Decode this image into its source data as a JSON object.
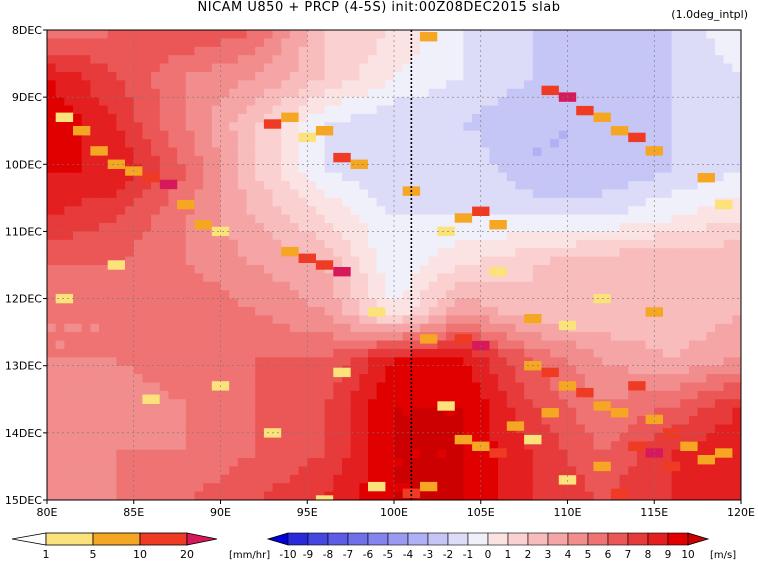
{
  "header": {
    "title": "NICAM   U850 + PRCP (4-5S) init:00Z08DEC2015 slab",
    "note": "(1.0deg_intpl)"
  },
  "chart_data": {
    "type": "heatmap",
    "x_ticks": [
      "80E",
      "85E",
      "90E",
      "95E",
      "100E",
      "105E",
      "110E",
      "115E",
      "120E"
    ],
    "y_ticks": [
      "8DEC",
      "9DEC",
      "10DEC",
      "11DEC",
      "12DEC",
      "13DEC",
      "14DEC",
      "15DEC"
    ],
    "xlim": [
      80,
      120
    ],
    "ylim_days": [
      8,
      15
    ],
    "reference_line_x": 101,
    "wind_field_u850_ms": {
      "lon": [
        80,
        84,
        88,
        92,
        96,
        100,
        104,
        108,
        112,
        116,
        120
      ],
      "days": [
        8,
        8.7,
        9.4,
        10.1,
        10.8,
        11.5,
        12.2,
        12.9,
        13.6,
        14.3,
        15
      ],
      "rows": [
        [
          5,
          6,
          7,
          6,
          2,
          1,
          -1,
          -2,
          -3,
          -2,
          0
        ],
        [
          9,
          7,
          5,
          4,
          2,
          0,
          -1,
          -2,
          -3,
          -2,
          -1
        ],
        [
          10,
          8,
          5,
          2,
          -1,
          -2,
          -2,
          -3,
          -3,
          -2,
          -1
        ],
        [
          9,
          9,
          6,
          2,
          -1,
          -2,
          -1,
          -3,
          -3,
          -2,
          -1
        ],
        [
          8,
          7,
          5,
          3,
          1,
          -1,
          -1,
          -1,
          -1,
          0,
          1
        ],
        [
          6,
          6,
          5,
          4,
          3,
          -1,
          1,
          2,
          3,
          3,
          3
        ],
        [
          5,
          5,
          6,
          5,
          4,
          0,
          4,
          2,
          2,
          2,
          3
        ],
        [
          5,
          5,
          6,
          6,
          6,
          9,
          9,
          6,
          4,
          3,
          4
        ],
        [
          4,
          4,
          5,
          6,
          7,
          10,
          10,
          7,
          5,
          6,
          8
        ],
        [
          4,
          5,
          5,
          6,
          7,
          10,
          10,
          8,
          6,
          8,
          9
        ],
        [
          5,
          5,
          6,
          7,
          8,
          10,
          10,
          8,
          7,
          8,
          9
        ]
      ]
    },
    "precip_cells_mmhr": [
      [
        81,
        9.3,
        1
      ],
      [
        82,
        9.5,
        5
      ],
      [
        83,
        9.8,
        5
      ],
      [
        84,
        10.0,
        5
      ],
      [
        85,
        10.1,
        5
      ],
      [
        86,
        10.2,
        10
      ],
      [
        87,
        10.3,
        20
      ],
      [
        88,
        10.6,
        5
      ],
      [
        89,
        10.9,
        5
      ],
      [
        90,
        11.0,
        1
      ],
      [
        93,
        9.4,
        10
      ],
      [
        94,
        9.3,
        5
      ],
      [
        95,
        9.6,
        1
      ],
      [
        96,
        9.5,
        5
      ],
      [
        97,
        9.9,
        10
      ],
      [
        98,
        10.0,
        5
      ],
      [
        94,
        11.3,
        5
      ],
      [
        95,
        11.4,
        10
      ],
      [
        96,
        11.5,
        10
      ],
      [
        97,
        11.6,
        20
      ],
      [
        101,
        10.4,
        5
      ],
      [
        102,
        8.1,
        5
      ],
      [
        104,
        10.8,
        5
      ],
      [
        105,
        10.7,
        10
      ],
      [
        106,
        10.9,
        5
      ],
      [
        109,
        8.9,
        10
      ],
      [
        110,
        9.0,
        20
      ],
      [
        111,
        9.2,
        10
      ],
      [
        112,
        9.3,
        5
      ],
      [
        113,
        9.5,
        5
      ],
      [
        114,
        9.6,
        10
      ],
      [
        115,
        9.8,
        5
      ],
      [
        118,
        10.2,
        5
      ],
      [
        119,
        10.6,
        1
      ],
      [
        103,
        11.0,
        1
      ],
      [
        106,
        11.6,
        1
      ],
      [
        112,
        12.0,
        1
      ],
      [
        115,
        12.2,
        5
      ],
      [
        104,
        12.6,
        10
      ],
      [
        105,
        12.7,
        20
      ],
      [
        102,
        12.6,
        5
      ],
      [
        108,
        12.3,
        5
      ],
      [
        110,
        12.4,
        1
      ],
      [
        108,
        13.0,
        5
      ],
      [
        109,
        13.1,
        10
      ],
      [
        110,
        13.3,
        5
      ],
      [
        111,
        13.4,
        10
      ],
      [
        112,
        13.6,
        5
      ],
      [
        113,
        13.7,
        5
      ],
      [
        114,
        13.3,
        10
      ],
      [
        115,
        13.8,
        5
      ],
      [
        116,
        14.0,
        10
      ],
      [
        117,
        14.2,
        5
      ],
      [
        114,
        14.2,
        10
      ],
      [
        115,
        14.3,
        20
      ],
      [
        116,
        14.5,
        10
      ],
      [
        118,
        14.4,
        5
      ],
      [
        119,
        14.3,
        5
      ],
      [
        112,
        14.5,
        5
      ],
      [
        110,
        14.7,
        1
      ],
      [
        113,
        14.9,
        10
      ],
      [
        109,
        13.7,
        5
      ],
      [
        107,
        13.9,
        5
      ],
      [
        108,
        14.1,
        1
      ],
      [
        103,
        13.6,
        1
      ],
      [
        104,
        14.1,
        5
      ],
      [
        105,
        14.2,
        5
      ],
      [
        106,
        14.3,
        10
      ],
      [
        102,
        14.8,
        5
      ],
      [
        101,
        14.9,
        10
      ],
      [
        99,
        14.8,
        1
      ],
      [
        96,
        15.0,
        1
      ],
      [
        84,
        11.5,
        1
      ],
      [
        81,
        12.0,
        1
      ],
      [
        86,
        13.5,
        1
      ],
      [
        90,
        13.3,
        1
      ],
      [
        93,
        14.0,
        1
      ],
      [
        97,
        13.1,
        1
      ],
      [
        99,
        12.2,
        1
      ]
    ],
    "precip_legend": {
      "values": [
        "1",
        "5",
        "10",
        "20"
      ],
      "colors": [
        "#ffffff",
        "#fbe27b",
        "#f5a623",
        "#ef3b24",
        "#d7195c"
      ],
      "unit": "[mm/hr]"
    },
    "wind_legend": {
      "values": [
        "-10",
        "-9",
        "-8",
        "-7",
        "-6",
        "-5",
        "-4",
        "-3",
        "-2",
        "-1",
        "0",
        "1",
        "2",
        "3",
        "4",
        "5",
        "6",
        "7",
        "8",
        "9",
        "10"
      ],
      "colors": [
        "#0000d8",
        "#2a2ad8",
        "#4646e0",
        "#5c5ce6",
        "#7070ea",
        "#8484ee",
        "#9a9af0",
        "#b0b0f4",
        "#c6c6f6",
        "#dcdcf8",
        "#f0f0fb",
        "#fbe3e3",
        "#fad0d0",
        "#f8bcbc",
        "#f5a5a5",
        "#f28d8d",
        "#ef7373",
        "#eb5757",
        "#e73b3b",
        "#e41f1f",
        "#e10000",
        "#cc0000"
      ],
      "unit": "[m/s]"
    }
  }
}
